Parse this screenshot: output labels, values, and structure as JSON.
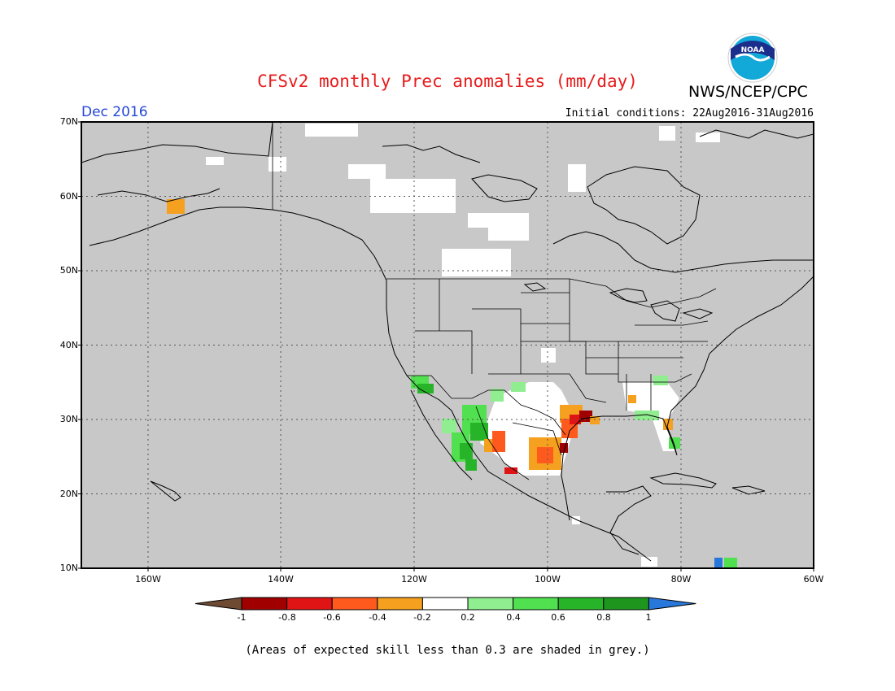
{
  "title": "CFSv2 monthly Prec anomalies (mm/day)",
  "organization": "NWS/NCEP/CPC",
  "logo_text": "NOAA",
  "month": "Dec 2016",
  "initial_conditions": "Initial conditions: 22Aug2016-31Aug2016",
  "latitude_labels": [
    "70N",
    "60N",
    "50N",
    "40N",
    "30N",
    "20N",
    "10N"
  ],
  "longitude_labels": [
    "160W",
    "140W",
    "120W",
    "100W",
    "80W",
    "60W"
  ],
  "colorbar": {
    "ticks": [
      "-1",
      "-0.8",
      "-0.6",
      "-0.4",
      "-0.2",
      "0.2",
      "0.4",
      "0.6",
      "0.8",
      "1"
    ],
    "colors": [
      "#6e4a32",
      "#a00000",
      "#e01414",
      "#ff5a1e",
      "#f5a01e",
      "#ffffff",
      "#90ee90",
      "#50e050",
      "#28b428",
      "#1e961e",
      "#2878dc"
    ]
  },
  "grey_color": "#c8c8c8",
  "note": "(Areas of expected skill less than 0.3 are shaded in grey.)"
}
